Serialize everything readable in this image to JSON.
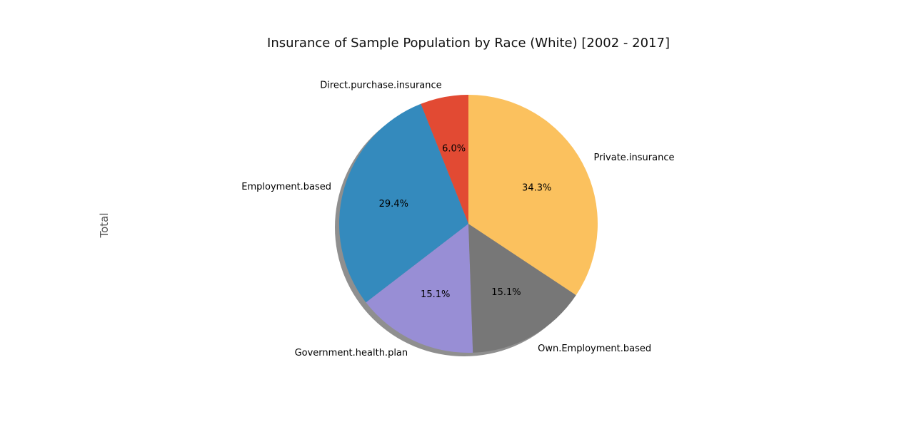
{
  "chart_data": {
    "type": "pie",
    "title": "Insurance of Sample Population by Race (White) [2002 - 2017]",
    "ylabel": "Total",
    "start_angle_deg": 90,
    "direction": "counterclockwise",
    "shadow": true,
    "slices": [
      {
        "label": "Direct.purchase.insurance",
        "percent": 6.0,
        "pct_text": "6.0%",
        "color": "#E24A33"
      },
      {
        "label": "Employment.based",
        "percent": 29.4,
        "pct_text": "29.4%",
        "color": "#348ABD"
      },
      {
        "label": "Government.health.plan",
        "percent": 15.1,
        "pct_text": "15.1%",
        "color": "#988ED5"
      },
      {
        "label": "Own.Employment.based",
        "percent": 15.1,
        "pct_text": "15.1%",
        "color": "#777777"
      },
      {
        "label": "Private.insurance",
        "percent": 34.3,
        "pct_text": "34.3%",
        "color": "#FBC15E"
      }
    ]
  }
}
